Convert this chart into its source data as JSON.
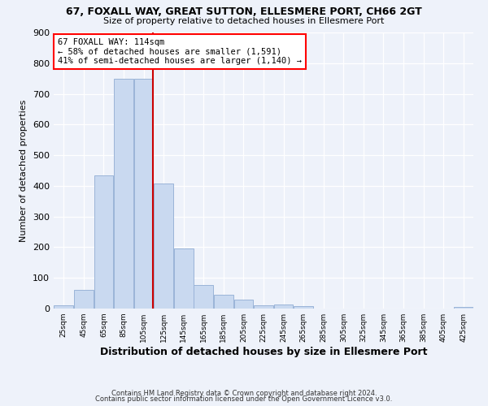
{
  "title1": "67, FOXALL WAY, GREAT SUTTON, ELLESMERE PORT, CH66 2GT",
  "title2": "Size of property relative to detached houses in Ellesmere Port",
  "xlabel": "Distribution of detached houses by size in Ellesmere Port",
  "ylabel": "Number of detached properties",
  "bar_color": "#c9d9f0",
  "bar_edge_color": "#9ab4d8",
  "vline_x": 114,
  "vline_color": "#cc0000",
  "annotation_line1": "67 FOXALL WAY: 114sqm",
  "annotation_line2": "← 58% of detached houses are smaller (1,591)",
  "annotation_line3": "41% of semi-detached houses are larger (1,140) →",
  "bin_edges": [
    15,
    35,
    55,
    75,
    95,
    115,
    135,
    155,
    175,
    195,
    215,
    235,
    255,
    275,
    295,
    315,
    335,
    355,
    375,
    395,
    415,
    435
  ],
  "bin_labels": [
    "25sqm",
    "45sqm",
    "65sqm",
    "85sqm",
    "105sqm",
    "125sqm",
    "145sqm",
    "165sqm",
    "185sqm",
    "205sqm",
    "225sqm",
    "245sqm",
    "265sqm",
    "285sqm",
    "305sqm",
    "325sqm",
    "345sqm",
    "365sqm",
    "385sqm",
    "405sqm",
    "425sqm"
  ],
  "counts": [
    10,
    60,
    435,
    750,
    750,
    407,
    197,
    77,
    45,
    30,
    10,
    13,
    7,
    0,
    0,
    0,
    0,
    0,
    0,
    0,
    5
  ],
  "ylim": [
    0,
    900
  ],
  "yticks": [
    0,
    100,
    200,
    300,
    400,
    500,
    600,
    700,
    800,
    900
  ],
  "footer1": "Contains HM Land Registry data © Crown copyright and database right 2024.",
  "footer2": "Contains public sector information licensed under the Open Government Licence v3.0.",
  "bg_color": "#eef2fa"
}
